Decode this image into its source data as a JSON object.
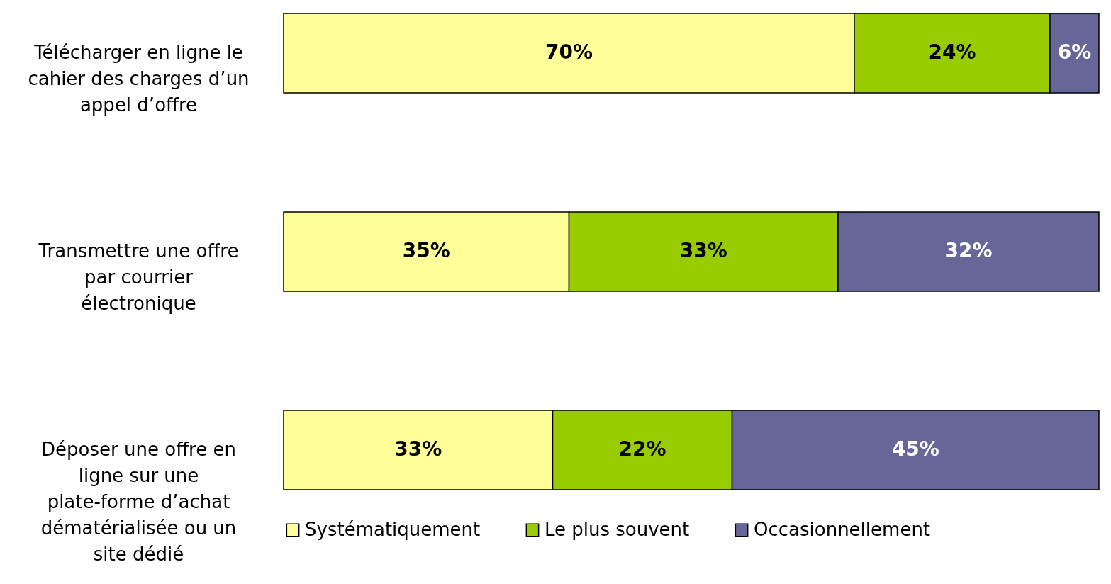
{
  "chart_data": {
    "type": "bar",
    "orientation": "horizontal",
    "stacked": true,
    "legend": "bottom",
    "categories": [
      "Télécharger en ligne le cahier des charges d’un appel d’offre",
      "Transmettre une offre par courrier électronique",
      "Déposer une offre en ligne sur une plate-forme d’achat dématérialisée ou un site dédié"
    ],
    "series": [
      {
        "name": "Systématiquement",
        "color": "#ffff99",
        "values": [
          70,
          35,
          33
        ],
        "value_labels": [
          "70%",
          "35%",
          "33%"
        ]
      },
      {
        "name": "Le plus souvent",
        "color": "#99cc00",
        "values": [
          24,
          33,
          22
        ],
        "value_labels": [
          "24%",
          "33%",
          "22%"
        ]
      },
      {
        "name": "Occasionnellement",
        "color": "#666699",
        "values": [
          6,
          32,
          45
        ],
        "value_labels": [
          "6%",
          "32%",
          "45%"
        ]
      }
    ]
  }
}
